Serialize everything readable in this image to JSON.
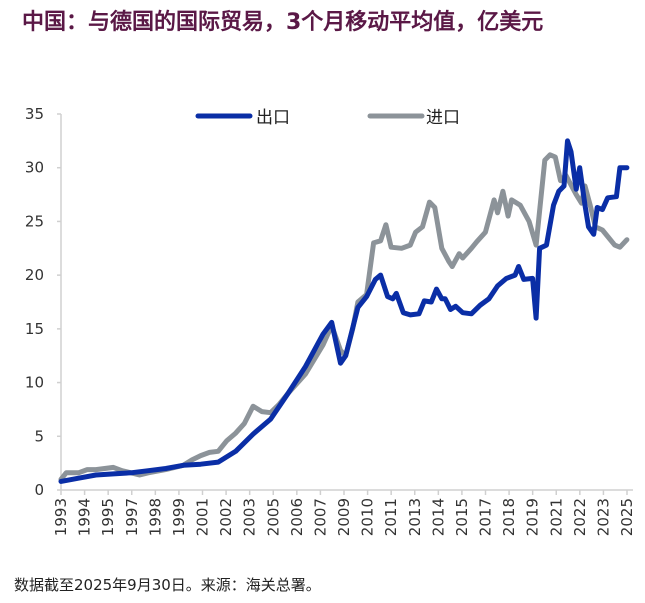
{
  "chart_data": {
    "type": "line",
    "title": "中国：与德国的国际贸易，3个月移动平均值，亿美元",
    "xlabel": "",
    "ylabel": "",
    "ylim": [
      0,
      35
    ],
    "yticks": [
      "0",
      "5",
      "10",
      "15",
      "20",
      "25",
      "30",
      "35"
    ],
    "xlim": [
      1993,
      2025.75
    ],
    "xticks": [
      "1993",
      "1994",
      "1995",
      "1997",
      "1998",
      "1999",
      "2001",
      "2002",
      "2003",
      "2005",
      "2006",
      "2007",
      "2009",
      "2010",
      "2011",
      "2013",
      "2014",
      "2015",
      "2017",
      "2018",
      "2019",
      "2021",
      "2022",
      "2023",
      "2025"
    ],
    "grid": false,
    "legend_position": "top-center",
    "series": [
      {
        "name": "出口",
        "color": "#0a2ea6",
        "x": [
          1993,
          1994,
          1995,
          1996,
          1997,
          1998,
          1999,
          2000,
          2001,
          2002,
          2003,
          2004,
          2005,
          2006,
          2007,
          2008,
          2008.5,
          2009,
          2009.3,
          2010,
          2010.5,
          2011,
          2011.3,
          2011.7,
          2012,
          2012.2,
          2012.6,
          2013,
          2013.5,
          2013.8,
          2014.2,
          2014.5,
          2014.8,
          2015,
          2015.3,
          2015.6,
          2016,
          2016.5,
          2017,
          2017.5,
          2018,
          2018.5,
          2019,
          2019.2,
          2019.5,
          2020,
          2020.2,
          2020.4,
          2020.8,
          2021.2,
          2021.5,
          2021.8,
          2022,
          2022.2,
          2022.5,
          2022.7,
          2023,
          2023.2,
          2023.5,
          2023.7,
          2024,
          2024.3,
          2024.8,
          2025,
          2025.4
        ],
        "y": [
          0.8,
          1.1,
          1.4,
          1.5,
          1.6,
          1.8,
          2.0,
          2.3,
          2.4,
          2.6,
          3.6,
          5.2,
          6.6,
          9.0,
          11.5,
          14.5,
          15.6,
          11.8,
          12.5,
          17,
          18,
          19.6,
          20,
          18,
          17.8,
          18.3,
          16.5,
          16.3,
          16.4,
          17.6,
          17.5,
          18.7,
          17.8,
          17.8,
          16.8,
          17.1,
          16.5,
          16.4,
          17.2,
          17.8,
          19,
          19.7,
          20,
          20.8,
          19.6,
          19.7,
          16,
          22.5,
          22.8,
          26.5,
          27.8,
          28.3,
          32.5,
          31.5,
          28,
          30,
          26.5,
          24.5,
          23.8,
          26.3,
          26.1,
          27.2,
          27.3,
          30,
          30
        ]
      },
      {
        "name": "进口",
        "color": "#8c9399",
        "x": [
          1993,
          1993.3,
          1994,
          1994.5,
          1995,
          1996,
          1996.5,
          1997,
          1997.5,
          1998,
          1999,
          2000,
          2000.5,
          2001,
          2001.5,
          2002,
          2002.5,
          2003,
          2003.5,
          2004,
          2004.5,
          2005,
          2005.5,
          2006,
          2007,
          2008,
          2008.5,
          2009,
          2009.3,
          2009.7,
          2010,
          2010.5,
          2010.9,
          2011.3,
          2011.6,
          2011.9,
          2012.5,
          2013,
          2013.3,
          2013.7,
          2014.1,
          2014.4,
          2014.8,
          2015.2,
          2015.4,
          2015.8,
          2016,
          2016.5,
          2016.8,
          2017.3,
          2017.8,
          2018,
          2018.3,
          2018.6,
          2018.8,
          2019.3,
          2019.8,
          2020.2,
          2020.7,
          2021,
          2021.3,
          2021.6,
          2021.9,
          2022.5,
          2022.8,
          2023,
          2023.3,
          2023.6,
          2024,
          2024.3,
          2024.7,
          2025,
          2025.4
        ],
        "y": [
          1.0,
          1.6,
          1.6,
          1.9,
          1.9,
          2.1,
          1.8,
          1.6,
          1.4,
          1.6,
          1.9,
          2.3,
          2.8,
          3.2,
          3.5,
          3.6,
          4.6,
          5.3,
          6.2,
          7.8,
          7.3,
          7.2,
          8,
          9,
          10.8,
          13.5,
          15.3,
          13,
          12.5,
          15,
          17.5,
          18.2,
          23,
          23.2,
          24.7,
          22.6,
          22.5,
          22.8,
          24,
          24.5,
          26.8,
          26.3,
          22.5,
          21.3,
          20.8,
          22,
          21.6,
          22.5,
          23.1,
          24,
          27,
          25.8,
          27.8,
          25.5,
          27,
          26.5,
          25,
          22.8,
          30.7,
          31.2,
          31,
          28.8,
          29.3,
          27.5,
          26.7,
          28.3,
          26.5,
          24.5,
          24.2,
          23.6,
          22.8,
          22.6,
          23.3
        ]
      }
    ]
  },
  "footer": "数据截至2025年9月30日。来源：海关总署。"
}
